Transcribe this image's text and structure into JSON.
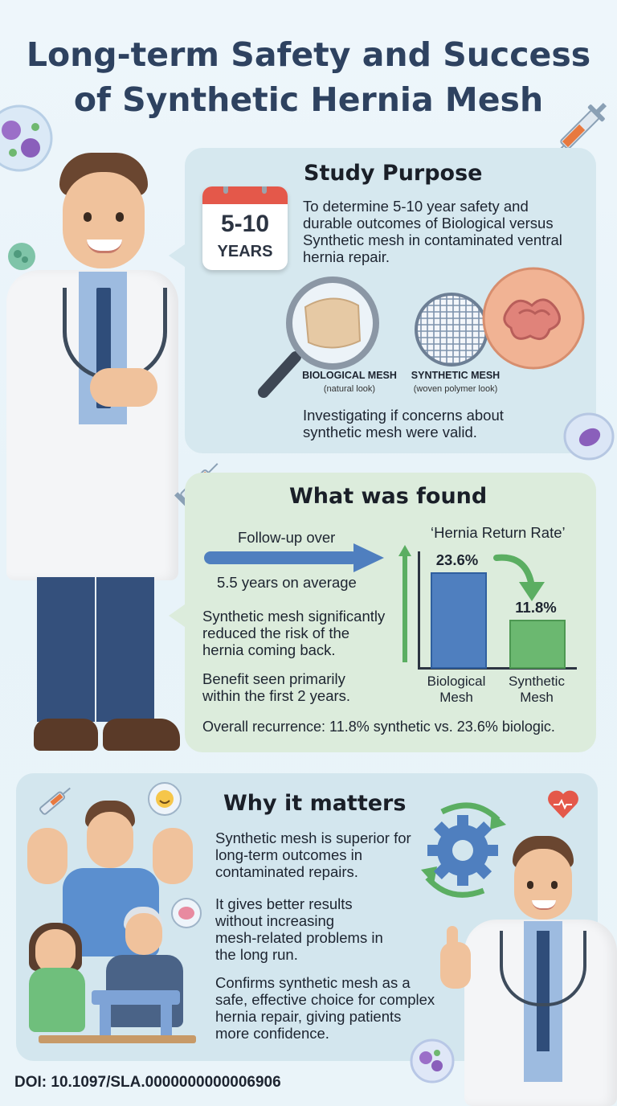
{
  "title": {
    "line1": "Long-term Safety and Success",
    "line2": "of Synthetic Hernia Mesh"
  },
  "purpose": {
    "heading": "Study Purpose",
    "calendar_number": "5-10",
    "calendar_unit": "YEARS",
    "lines": [
      "To determine 5-10 year safety and",
      "durable outcomes of Biological versus",
      "Synthetic mesh in contaminated ventral",
      "hernia repair."
    ],
    "bio_label": "BIOLOGICAL MESH",
    "bio_sub": "(natural look)",
    "syn_label": "SYNTHETIC MESH",
    "syn_sub": "(woven polymer look)",
    "footer_lines": [
      "Investigating if concerns about",
      "synthetic mesh were valid."
    ]
  },
  "found": {
    "heading": "What was found",
    "followup_top": "Follow-up over",
    "followup_bottom": "5.5 years on average",
    "point1_lines": [
      "Synthetic mesh significantly",
      "reduced the risk of the",
      "hernia coming back."
    ],
    "point2_lines": [
      "Benefit seen primarily",
      "within the first 2 years."
    ],
    "overall": "Overall recurrence: 11.8% synthetic vs. 23.6% biologic."
  },
  "chart_data": {
    "type": "bar",
    "title": "‘Hernia Return Rate’",
    "categories": [
      "Biological Mesh",
      "Synthetic Mesh"
    ],
    "category_lines": [
      [
        "Biological",
        "Mesh"
      ],
      [
        "Synthetic",
        "Mesh"
      ]
    ],
    "values": [
      23.6,
      11.8
    ],
    "value_labels": [
      "23.6%",
      "11.8%"
    ],
    "ylim": [
      0,
      30
    ],
    "colors": [
      "#4f7fbf",
      "#6bb870"
    ],
    "xlabel": "",
    "ylabel": ""
  },
  "why": {
    "heading": "Why it matters",
    "p1_lines": [
      "Synthetic mesh is superior for",
      "long-term outcomes in",
      "contaminated repairs."
    ],
    "p2_lines": [
      "It gives better results",
      "without increasing",
      "mesh-related problems in",
      "the long run."
    ],
    "p3_lines": [
      "Confirms synthetic mesh as a",
      "safe, effective choice for complex",
      "hernia repair, giving patients",
      "more confidence."
    ]
  },
  "doi": "DOI: 10.1097/SLA.0000000000006906",
  "icons": [
    "syringe-icon",
    "heart-icon",
    "bacteria-icon",
    "gear-icon",
    "smiley-icon",
    "brain-icon",
    "magnifier-icon",
    "calendar-icon"
  ],
  "colors": {
    "title": "#2e4260",
    "purpose_panel": "#d6e8ef",
    "found_panel": "#dcecdc",
    "why_panel": "#d3e6ee",
    "accent_blue": "#4f7fbf",
    "accent_green": "#6bb870",
    "heart": "#e4584a"
  }
}
